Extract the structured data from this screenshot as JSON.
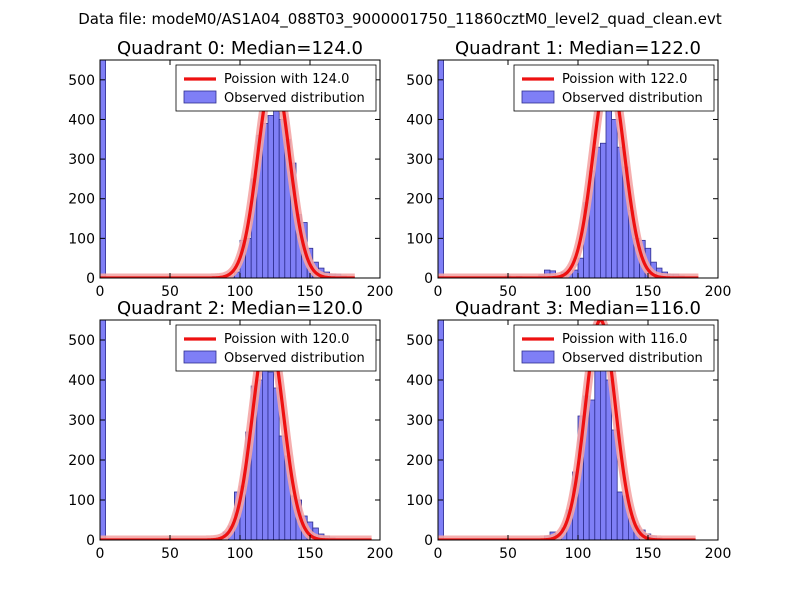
{
  "suptitle": "Data file: modeM0/AS1A04_088T03_9000001750_11860cztM0_level2_quad_clean.evt",
  "colors": {
    "hist_fill": "#7f7ff6",
    "hist_edge": "#2f2f90",
    "poisson_line": "#ee1111",
    "poisson_highlight": "#f4a6a6"
  },
  "chart_data": [
    {
      "type": "bar",
      "title": "Quadrant 0: Median=124.0",
      "xlim": [
        0,
        200
      ],
      "ylim": [
        0,
        550
      ],
      "xticks": [
        0,
        50,
        100,
        150,
        200
      ],
      "yticks": [
        0,
        100,
        200,
        300,
        400,
        500
      ],
      "legend": [
        "Poission with 124.0",
        "Observed distribution"
      ],
      "legend_position": "top-right",
      "median": 124.0,
      "poisson_peak": 520,
      "bin_width": 4,
      "bins": [
        {
          "x": 0,
          "value": 550
        },
        {
          "x": 80,
          "value": 4
        },
        {
          "x": 88,
          "value": 6
        },
        {
          "x": 92,
          "value": 5
        },
        {
          "x": 96,
          "value": 15
        },
        {
          "x": 100,
          "value": 95
        },
        {
          "x": 104,
          "value": 100
        },
        {
          "x": 108,
          "value": 250
        },
        {
          "x": 112,
          "value": 360
        },
        {
          "x": 116,
          "value": 390
        },
        {
          "x": 120,
          "value": 410
        },
        {
          "x": 124,
          "value": 450
        },
        {
          "x": 128,
          "value": 400
        },
        {
          "x": 132,
          "value": 350
        },
        {
          "x": 136,
          "value": 290
        },
        {
          "x": 140,
          "value": 160
        },
        {
          "x": 144,
          "value": 140
        },
        {
          "x": 148,
          "value": 75
        },
        {
          "x": 152,
          "value": 40
        },
        {
          "x": 156,
          "value": 25
        },
        {
          "x": 160,
          "value": 15
        },
        {
          "x": 164,
          "value": 10
        },
        {
          "x": 168,
          "value": 10
        },
        {
          "x": 172,
          "value": 5
        },
        {
          "x": 176,
          "value": 2
        }
      ],
      "curve_range": [
        0,
        182
      ]
    },
    {
      "type": "bar",
      "title": "Quadrant 1: Median=122.0",
      "xlim": [
        0,
        200
      ],
      "ylim": [
        0,
        550
      ],
      "xticks": [
        0,
        50,
        100,
        150,
        200
      ],
      "yticks": [
        0,
        100,
        200,
        300,
        400,
        500
      ],
      "legend": [
        "Poission with 122.0",
        "Observed distribution"
      ],
      "legend_position": "top-right",
      "median": 122.0,
      "poisson_peak": 525,
      "bin_width": 4,
      "bins": [
        {
          "x": 0,
          "value": 560
        },
        {
          "x": 48,
          "value": 5
        },
        {
          "x": 56,
          "value": 4
        },
        {
          "x": 72,
          "value": 8
        },
        {
          "x": 76,
          "value": 20
        },
        {
          "x": 80,
          "value": 18
        },
        {
          "x": 88,
          "value": 15
        },
        {
          "x": 92,
          "value": 10
        },
        {
          "x": 96,
          "value": 20
        },
        {
          "x": 100,
          "value": 50
        },
        {
          "x": 104,
          "value": 190
        },
        {
          "x": 108,
          "value": 270
        },
        {
          "x": 112,
          "value": 330
        },
        {
          "x": 116,
          "value": 340
        },
        {
          "x": 120,
          "value": 470
        },
        {
          "x": 124,
          "value": 400
        },
        {
          "x": 128,
          "value": 330
        },
        {
          "x": 132,
          "value": 280
        },
        {
          "x": 136,
          "value": 170
        },
        {
          "x": 140,
          "value": 100
        },
        {
          "x": 144,
          "value": 95
        },
        {
          "x": 148,
          "value": 75
        },
        {
          "x": 152,
          "value": 40
        },
        {
          "x": 156,
          "value": 25
        },
        {
          "x": 160,
          "value": 15
        },
        {
          "x": 164,
          "value": 10
        },
        {
          "x": 168,
          "value": 10
        },
        {
          "x": 172,
          "value": 5
        }
      ],
      "curve_range": [
        0,
        186
      ]
    },
    {
      "type": "bar",
      "title": "Quadrant 2: Median=120.0",
      "xlim": [
        0,
        200
      ],
      "ylim": [
        0,
        550
      ],
      "xticks": [
        0,
        50,
        100,
        150,
        200
      ],
      "yticks": [
        0,
        100,
        200,
        300,
        400,
        500
      ],
      "legend": [
        "Poission with 120.0",
        "Observed distribution"
      ],
      "legend_position": "top-right",
      "median": 120.0,
      "poisson_peak": 525,
      "bin_width": 4,
      "bins": [
        {
          "x": 0,
          "value": 565
        },
        {
          "x": 80,
          "value": 4
        },
        {
          "x": 84,
          "value": 5
        },
        {
          "x": 88,
          "value": 20
        },
        {
          "x": 92,
          "value": 35
        },
        {
          "x": 96,
          "value": 120
        },
        {
          "x": 100,
          "value": 135
        },
        {
          "x": 104,
          "value": 270
        },
        {
          "x": 108,
          "value": 385
        },
        {
          "x": 112,
          "value": 400
        },
        {
          "x": 116,
          "value": 440
        },
        {
          "x": 120,
          "value": 420
        },
        {
          "x": 124,
          "value": 380
        },
        {
          "x": 128,
          "value": 260
        },
        {
          "x": 132,
          "value": 210
        },
        {
          "x": 136,
          "value": 110
        },
        {
          "x": 140,
          "value": 100
        },
        {
          "x": 144,
          "value": 60
        },
        {
          "x": 148,
          "value": 45
        },
        {
          "x": 152,
          "value": 30
        },
        {
          "x": 156,
          "value": 15
        },
        {
          "x": 160,
          "value": 10
        },
        {
          "x": 164,
          "value": 5
        },
        {
          "x": 168,
          "value": 3
        }
      ],
      "curve_range": [
        0,
        194
      ]
    },
    {
      "type": "bar",
      "title": "Quadrant 3: Median=116.0",
      "xlim": [
        0,
        200
      ],
      "ylim": [
        0,
        550
      ],
      "xticks": [
        0,
        50,
        100,
        150,
        200
      ],
      "yticks": [
        0,
        100,
        200,
        300,
        400,
        500
      ],
      "legend": [
        "Poission with 116.0",
        "Observed distribution"
      ],
      "legend_position": "top-right",
      "median": 116.0,
      "poisson_peak": 550,
      "bin_width": 4,
      "bins": [
        {
          "x": 0,
          "value": 565
        },
        {
          "x": 76,
          "value": 10
        },
        {
          "x": 80,
          "value": 20
        },
        {
          "x": 84,
          "value": 15
        },
        {
          "x": 88,
          "value": 30
        },
        {
          "x": 92,
          "value": 75
        },
        {
          "x": 96,
          "value": 170
        },
        {
          "x": 100,
          "value": 310
        },
        {
          "x": 104,
          "value": 360
        },
        {
          "x": 108,
          "value": 350
        },
        {
          "x": 112,
          "value": 460
        },
        {
          "x": 116,
          "value": 440
        },
        {
          "x": 120,
          "value": 400
        },
        {
          "x": 124,
          "value": 275
        },
        {
          "x": 128,
          "value": 120
        },
        {
          "x": 132,
          "value": 110
        },
        {
          "x": 136,
          "value": 55
        },
        {
          "x": 140,
          "value": 35
        },
        {
          "x": 144,
          "value": 25
        },
        {
          "x": 148,
          "value": 15
        },
        {
          "x": 152,
          "value": 10
        },
        {
          "x": 156,
          "value": 5
        }
      ],
      "curve_range": [
        0,
        184
      ]
    }
  ]
}
